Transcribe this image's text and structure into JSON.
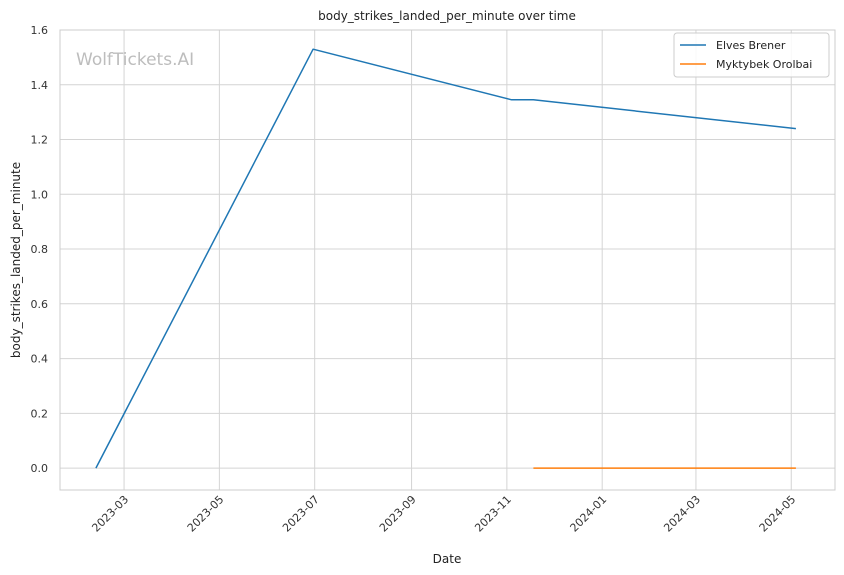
{
  "chart_data": {
    "type": "line",
    "title": "body_strikes_landed_per_minute over time",
    "xlabel": "Date",
    "ylabel": "body_strikes_landed_per_minute",
    "watermark": "WolfTickets.AI",
    "x_scale": "date",
    "xlim": [
      "2023-01-19",
      "2024-05-29"
    ],
    "ylim": [
      -0.08,
      1.6
    ],
    "x_ticks": [
      "2023-03-01",
      "2023-05-01",
      "2023-07-01",
      "2023-09-01",
      "2023-11-01",
      "2024-01-01",
      "2024-03-01",
      "2024-05-01"
    ],
    "x_tick_labels": [
      "2023-03",
      "2023-05",
      "2023-07",
      "2023-09",
      "2023-11",
      "2024-01",
      "2024-03",
      "2024-05"
    ],
    "y_ticks": [
      0.0,
      0.2,
      0.4,
      0.6,
      0.8,
      1.0,
      1.2,
      1.4,
      1.6
    ],
    "y_tick_labels": [
      "0.0",
      "0.2",
      "0.4",
      "0.6",
      "0.8",
      "1.0",
      "1.2",
      "1.4",
      "1.6"
    ],
    "grid": true,
    "legend_position": "top-right",
    "series": [
      {
        "name": "Elves Brener",
        "color": "#1f77b4",
        "points": [
          {
            "x": "2023-02-11",
            "y": 0.0
          },
          {
            "x": "2023-06-30",
            "y": 1.53
          },
          {
            "x": "2023-11-04",
            "y": 1.345
          },
          {
            "x": "2023-11-18",
            "y": 1.345
          },
          {
            "x": "2024-05-04",
            "y": 1.24
          }
        ]
      },
      {
        "name": "Myktybek Orolbai",
        "color": "#ff7f0e",
        "points": [
          {
            "x": "2023-11-18",
            "y": 0.0
          },
          {
            "x": "2024-05-04",
            "y": 0.0
          }
        ]
      }
    ]
  }
}
